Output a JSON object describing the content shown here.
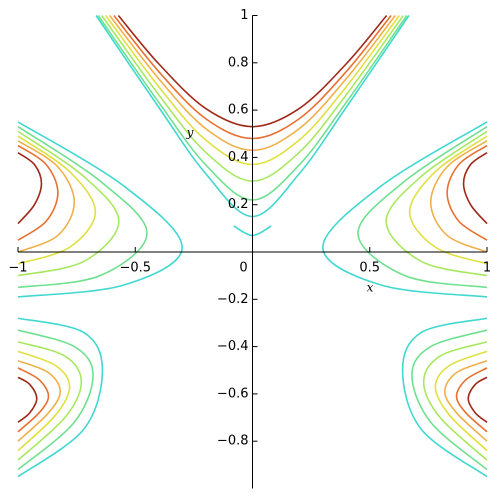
{
  "chart_data": {
    "type": "contour",
    "x_label": "x",
    "y_label": "y",
    "xlim": [
      -1,
      1
    ],
    "ylim": [
      -1,
      1
    ],
    "xticks": [
      {
        "value": -1,
        "label": "−1"
      },
      {
        "value": -0.5,
        "label": "−0.5"
      },
      0,
      0.5,
      1
    ],
    "yticks": [
      {
        "value": -0.8,
        "label": "−0.8"
      },
      {
        "value": -0.6,
        "label": "−0.6"
      },
      {
        "value": -0.4,
        "label": "−0.4"
      },
      {
        "value": -0.2,
        "label": "−0.2"
      },
      0.2,
      0.4,
      0.6,
      0.8,
      1
    ],
    "series": [
      {
        "color": "#40d8d0",
        "x": [
          -0.667,
          -0.4,
          -0.2,
          0,
          0.2,
          0.4,
          0.667
        ],
        "y": [
          1,
          0.612,
          0.332,
          0.15,
          0.332,
          0.612,
          1
        ]
      },
      {
        "color": "#70e090",
        "x": [
          -0.658,
          -0.4,
          -0.2,
          0,
          0.2,
          0.4,
          0.658
        ],
        "y": [
          1,
          0.633,
          0.369,
          0.22,
          0.369,
          0.633,
          1
        ]
      },
      {
        "color": "#a8e860",
        "x": [
          -0.643,
          -0.4,
          -0.2,
          0,
          0.2,
          0.4,
          0.643
        ],
        "y": [
          1,
          0.665,
          0.422,
          0.3,
          0.422,
          0.665,
          1
        ]
      },
      {
        "color": "#e0e040",
        "x": [
          -0.626,
          -0.4,
          -0.2,
          0,
          0.2,
          0.4,
          0.626
        ],
        "y": [
          1,
          0.699,
          0.474,
          0.37,
          0.474,
          0.699,
          1
        ]
      },
      {
        "color": "#f0b048",
        "x": [
          -0.609,
          -0.4,
          -0.2,
          0,
          0.2,
          0.4,
          0.609
        ],
        "y": [
          1,
          0.733,
          0.522,
          0.43,
          0.522,
          0.733,
          1
        ]
      },
      {
        "color": "#e87030",
        "x": [
          -0.591,
          -0.4,
          -0.2,
          0,
          0.2,
          0.4,
          0.591
        ],
        "y": [
          1,
          0.763,
          0.564,
          0.48,
          0.564,
          0.763,
          1
        ]
      },
      {
        "color": "#a02818",
        "x": [
          -0.572,
          -0.4,
          -0.2,
          0,
          0.2,
          0.4,
          0.572
        ],
        "y": [
          1,
          0.796,
          0.607,
          0.53,
          0.607,
          0.796,
          1
        ]
      },
      {
        "color": "#40d8d0",
        "x": [
          -0.08,
          0,
          0.08
        ],
        "y": [
          0.11,
          0.07,
          0.11
        ]
      },
      {
        "color": "#40d8d0",
        "x": [
          -1,
          -0.55,
          -0.3,
          -0.55,
          -1
        ],
        "y": [
          0.55,
          0.28,
          0.02,
          -0.14,
          -0.19
        ]
      },
      {
        "color": "#70e090",
        "x": [
          -1,
          -0.65,
          -0.45,
          -0.65,
          -1
        ],
        "y": [
          0.53,
          0.3,
          0.08,
          -0.1,
          -0.15
        ]
      },
      {
        "color": "#a8e860",
        "x": [
          -1,
          -0.72,
          -0.57,
          -0.72,
          -1
        ],
        "y": [
          0.51,
          0.32,
          0.13,
          -0.04,
          -0.1
        ]
      },
      {
        "color": "#e0e040",
        "x": [
          -1,
          -0.78,
          -0.67,
          -0.78,
          -1
        ],
        "y": [
          0.49,
          0.34,
          0.17,
          0.02,
          -0.05
        ]
      },
      {
        "color": "#f0b048",
        "x": [
          -1,
          -0.83,
          -0.76,
          -0.83,
          -1
        ],
        "y": [
          0.47,
          0.36,
          0.21,
          0.07,
          0
        ]
      },
      {
        "color": "#e87030",
        "x": [
          -1,
          -0.88,
          -0.83,
          -0.88,
          -1
        ],
        "y": [
          0.45,
          0.37,
          0.25,
          0.13,
          0.05
        ]
      },
      {
        "color": "#a02818",
        "x": [
          -1,
          -0.93,
          -0.9,
          -0.93,
          -1
        ],
        "y": [
          0.42,
          0.37,
          0.29,
          0.2,
          0.12
        ]
      },
      {
        "color": "#40d8d0",
        "x": [
          1,
          0.55,
          0.3,
          0.55,
          1
        ],
        "y": [
          0.55,
          0.28,
          0.02,
          -0.14,
          -0.19
        ]
      },
      {
        "color": "#70e090",
        "x": [
          1,
          0.65,
          0.45,
          0.65,
          1
        ],
        "y": [
          0.53,
          0.3,
          0.08,
          -0.1,
          -0.15
        ]
      },
      {
        "color": "#a8e860",
        "x": [
          1,
          0.72,
          0.57,
          0.72,
          1
        ],
        "y": [
          0.51,
          0.32,
          0.13,
          -0.04,
          -0.1
        ]
      },
      {
        "color": "#e0e040",
        "x": [
          1,
          0.78,
          0.67,
          0.78,
          1
        ],
        "y": [
          0.49,
          0.34,
          0.17,
          0.02,
          -0.05
        ]
      },
      {
        "color": "#f0b048",
        "x": [
          1,
          0.83,
          0.76,
          0.83,
          1
        ],
        "y": [
          0.47,
          0.36,
          0.21,
          0.07,
          0
        ]
      },
      {
        "color": "#e87030",
        "x": [
          1,
          0.88,
          0.83,
          0.88,
          1
        ],
        "y": [
          0.45,
          0.37,
          0.25,
          0.13,
          0.05
        ]
      },
      {
        "color": "#a02818",
        "x": [
          1,
          0.93,
          0.9,
          0.93,
          1
        ],
        "y": [
          0.42,
          0.37,
          0.29,
          0.2,
          0.12
        ]
      },
      {
        "color": "#40d8d0",
        "x": [
          -1,
          -0.72,
          -0.64,
          -0.72,
          -1
        ],
        "y": [
          -0.28,
          -0.34,
          -0.5,
          -0.75,
          -0.95
        ]
      },
      {
        "color": "#70e090",
        "x": [
          -1,
          -0.76,
          -0.68,
          -0.76,
          -1
        ],
        "y": [
          -0.33,
          -0.4,
          -0.52,
          -0.72,
          -0.92
        ]
      },
      {
        "color": "#a8e860",
        "x": [
          -1,
          -0.8,
          -0.73,
          -0.8,
          -1
        ],
        "y": [
          -0.38,
          -0.44,
          -0.55,
          -0.7,
          -0.88
        ]
      },
      {
        "color": "#e0e040",
        "x": [
          -1,
          -0.84,
          -0.78,
          -0.84,
          -1
        ],
        "y": [
          -0.42,
          -0.48,
          -0.57,
          -0.69,
          -0.84
        ]
      },
      {
        "color": "#f0b048",
        "x": [
          -1,
          -0.87,
          -0.82,
          -0.87,
          -1
        ],
        "y": [
          -0.46,
          -0.51,
          -0.59,
          -0.68,
          -0.8
        ]
      },
      {
        "color": "#e87030",
        "x": [
          -1,
          -0.91,
          -0.87,
          -0.91,
          -1
        ],
        "y": [
          -0.49,
          -0.54,
          -0.61,
          -0.68,
          -0.76
        ]
      },
      {
        "color": "#a02818",
        "x": [
          -1,
          -0.95,
          -0.92,
          -0.95,
          -1
        ],
        "y": [
          -0.53,
          -0.56,
          -0.62,
          -0.68,
          -0.72
        ]
      },
      {
        "color": "#40d8d0",
        "x": [
          1,
          0.72,
          0.64,
          0.72,
          1
        ],
        "y": [
          -0.28,
          -0.34,
          -0.5,
          -0.75,
          -0.95
        ]
      },
      {
        "color": "#70e090",
        "x": [
          1,
          0.76,
          0.68,
          0.76,
          1
        ],
        "y": [
          -0.33,
          -0.4,
          -0.52,
          -0.72,
          -0.92
        ]
      },
      {
        "color": "#a8e860",
        "x": [
          1,
          0.8,
          0.73,
          0.8,
          1
        ],
        "y": [
          -0.38,
          -0.44,
          -0.55,
          -0.7,
          -0.88
        ]
      },
      {
        "color": "#e0e040",
        "x": [
          1,
          0.84,
          0.78,
          0.84,
          1
        ],
        "y": [
          -0.42,
          -0.48,
          -0.57,
          -0.69,
          -0.84
        ]
      },
      {
        "color": "#f0b048",
        "x": [
          1,
          0.87,
          0.82,
          0.87,
          1
        ],
        "y": [
          -0.46,
          -0.51,
          -0.59,
          -0.68,
          -0.8
        ]
      },
      {
        "color": "#e87030",
        "x": [
          1,
          0.91,
          0.87,
          0.91,
          1
        ],
        "y": [
          -0.49,
          -0.54,
          -0.61,
          -0.68,
          -0.76
        ]
      },
      {
        "color": "#a02818",
        "x": [
          1,
          0.95,
          0.92,
          0.95,
          1
        ],
        "y": [
          -0.53,
          -0.56,
          -0.62,
          -0.68,
          -0.72
        ]
      }
    ]
  }
}
